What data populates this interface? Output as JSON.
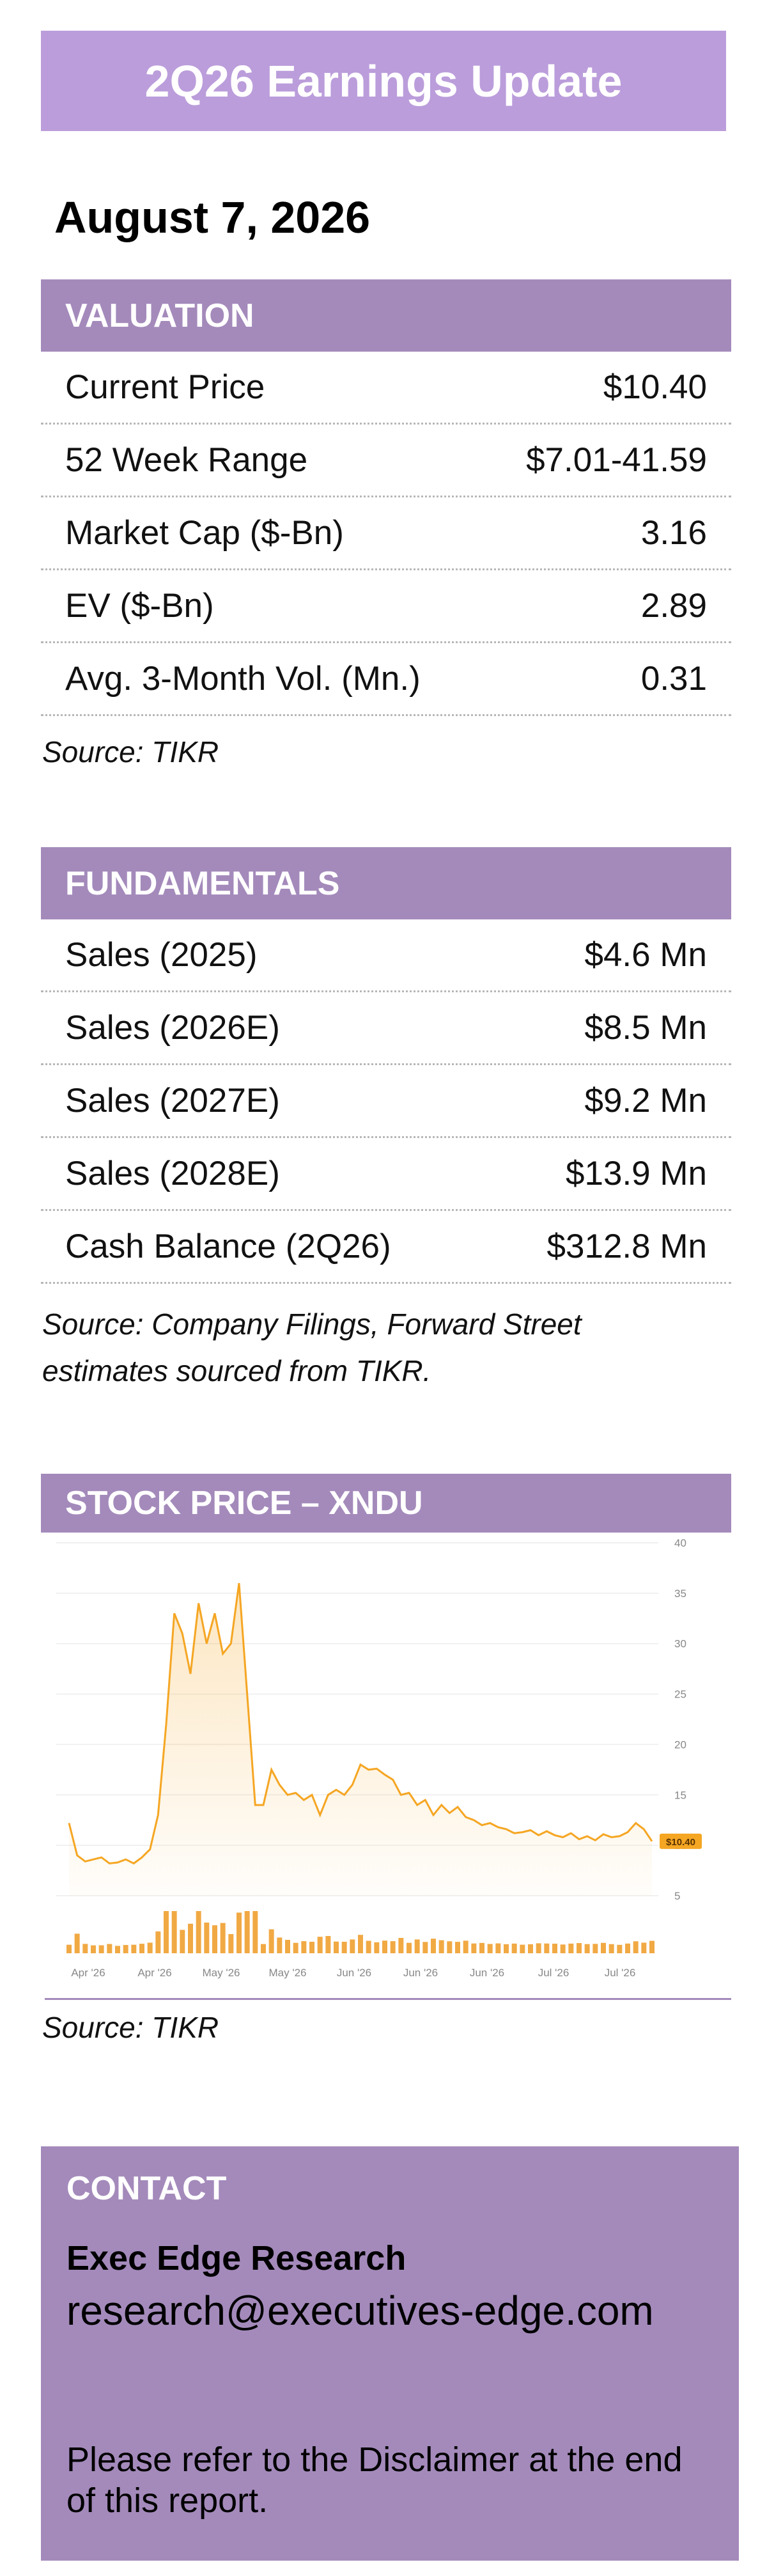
{
  "header": {
    "title": "2Q26 Earnings Update",
    "date": "August 7, 2026"
  },
  "valuation": {
    "heading": "VALUATION",
    "rows": [
      {
        "label": "Current Price",
        "value": "$10.40"
      },
      {
        "label": "52 Week Range",
        "value": "$7.01-41.59"
      },
      {
        "label": "Market Cap ($-Bn)",
        "value": "3.16"
      },
      {
        "label": "EV ($-Bn)",
        "value": "2.89"
      },
      {
        "label": "Avg. 3-Month Vol. (Mn.)",
        "value": "0.31"
      }
    ],
    "source": "Source: TIKR"
  },
  "fundamentals": {
    "heading": "FUNDAMENTALS",
    "rows": [
      {
        "label": "Sales (2025)",
        "value": "$4.6 Mn"
      },
      {
        "label": "Sales (2026E)",
        "value": "$8.5 Mn"
      },
      {
        "label": "Sales (2027E)",
        "value": "$9.2 Mn"
      },
      {
        "label": "Sales (2028E)",
        "value": "$13.9 Mn"
      },
      {
        "label": "Cash Balance (2Q26)",
        "value": "$312.8 Mn"
      }
    ],
    "source_line1": "Source: Company Filings, Forward Street",
    "source_line2": "estimates sourced from TIKR."
  },
  "stock": {
    "heading": "STOCK PRICE – XNDU",
    "source": "Source: TIKR",
    "price_label": "$10.40"
  },
  "chart_data": {
    "type": "area",
    "y_ticks": [
      "40",
      "35",
      "30",
      "25",
      "20",
      "15",
      "10",
      "5"
    ],
    "ylim": [
      5,
      40
    ],
    "x_tick_labels": [
      "Apr '26",
      "Apr '26",
      "May '26",
      "May '26",
      "Jun '26",
      "Jun '26",
      "Jun '26",
      "Jul '26",
      "Jul '26"
    ],
    "price": [
      12.2,
      9,
      8.4,
      8.6,
      8.8,
      8.2,
      8.3,
      8.6,
      8.2,
      8.8,
      9.6,
      13,
      22,
      33,
      31,
      27,
      34,
      30,
      33,
      29,
      30,
      36,
      25,
      14,
      14,
      17.5,
      16,
      15,
      15.2,
      14.5,
      15,
      13,
      15,
      15.5,
      15,
      16,
      18,
      17.5,
      17.6,
      17,
      16.5,
      15,
      15.2,
      14,
      14.5,
      13,
      14,
      13.2,
      13.8,
      12.8,
      12.5,
      12,
      12.2,
      11.8,
      11.6,
      11.2,
      11.3,
      11.5,
      11,
      11.4,
      11,
      10.8,
      11.2,
      10.6,
      10.9,
      10.5,
      11.1,
      10.8,
      10.9,
      11.3,
      12.2,
      11.6,
      10.4
    ],
    "color": "#f5a623",
    "volume_color": "#f0a030"
  },
  "contact": {
    "heading": "CONTACT",
    "org": "Exec Edge Research",
    "email": "research@executives-edge.com",
    "disclaimer": "Please refer to the Disclaimer at the end of this report."
  }
}
